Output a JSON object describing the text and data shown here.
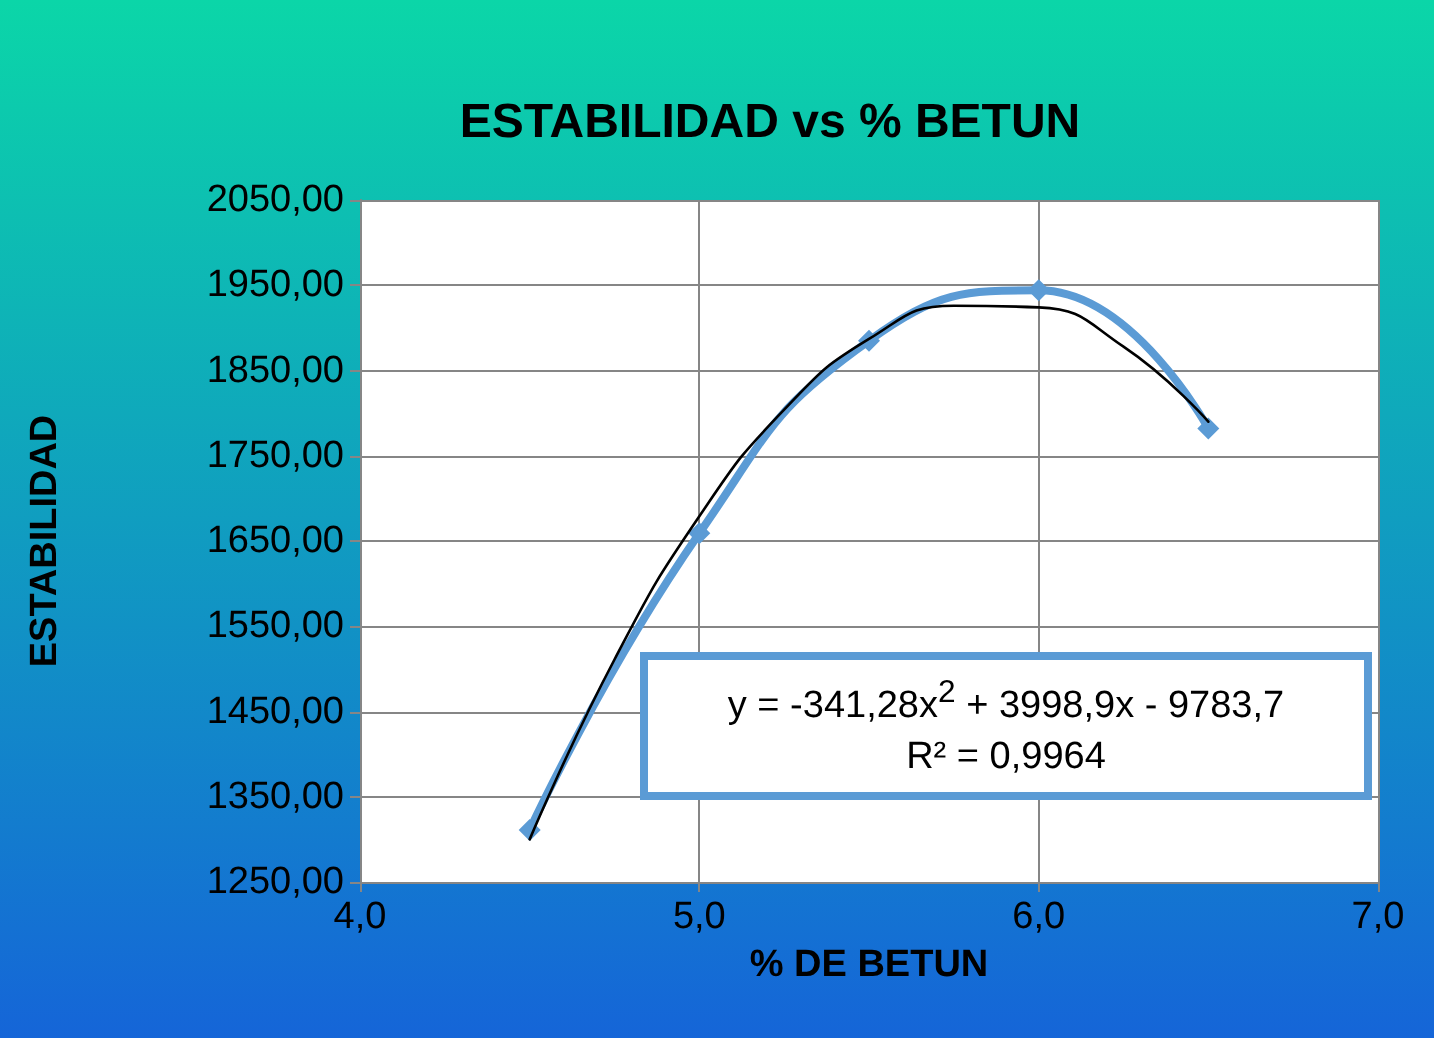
{
  "chart_data": {
    "type": "line",
    "title": "ESTABILIDAD vs % BETUN",
    "xlabel": "% DE BETUN",
    "ylabel": "ESTABILIDAD",
    "x": [
      4.5,
      5.0,
      5.5,
      6.0,
      6.5
    ],
    "series": [
      {
        "color": "#5b9bd5",
        "values": [
          1311,
          1659,
          1885,
          1944,
          1782
        ],
        "marker": "diamond"
      },
      {
        "type": "line",
        "color": "#000000",
        "marker": "none",
        "x": [
          4.5,
          4.75,
          5.0,
          5.25,
          5.5,
          5.75,
          6.0,
          6.25,
          6.5
        ],
        "values": [
          1300,
          1511,
          1679,
          1804,
          1887,
          1926,
          1924,
          1878,
          1790
        ]
      }
    ],
    "xlim": [
      4,
      7
    ],
    "xticks": [
      {
        "value": 4,
        "label": "4,0"
      },
      {
        "value": 5,
        "label": "5,0"
      },
      {
        "value": 6,
        "label": "6,0"
      },
      {
        "value": 7,
        "label": "7,0"
      }
    ],
    "ylim": [
      1250,
      2050
    ],
    "yticks": [
      {
        "value": 1250,
        "label": "1250,00"
      },
      {
        "value": 1350,
        "label": "1350,00"
      },
      {
        "value": 1450,
        "label": "1450,00"
      },
      {
        "value": 1550,
        "label": "1550,00"
      },
      {
        "value": 1650,
        "label": "1650,00"
      },
      {
        "value": 1750,
        "label": "1750,00"
      },
      {
        "value": 1850,
        "label": "1850,00"
      },
      {
        "value": 1950,
        "label": "1950,00"
      },
      {
        "value": 2050,
        "label": "2050,00"
      }
    ],
    "grid": true,
    "annotations": [
      "y = -341,28x$^{2}$ + 3998,9x - 9783,7",
      "R² = 0,9964"
    ]
  }
}
